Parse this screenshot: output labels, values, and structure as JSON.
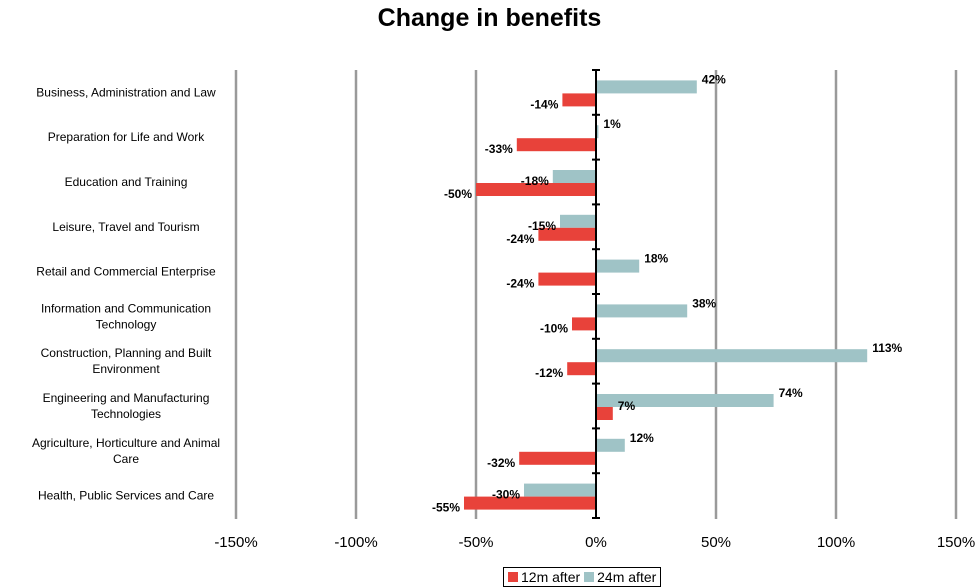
{
  "chart_data": {
    "type": "bar",
    "orientation": "horizontal",
    "title": "Change in benefits",
    "categories": [
      "Business, Administration and Law",
      "Preparation for Life and Work",
      "Education and Training",
      "Leisure, Travel and Tourism",
      "Retail and Commercial Enterprise",
      "Information and Communication Technology",
      "Construction, Planning and Built Environment",
      "Engineering and Manufacturing Technologies",
      "Agriculture, Horticulture and Animal Care",
      "Health, Public Services and Care"
    ],
    "series": [
      {
        "name": "12m after",
        "color": "#e8423a",
        "values": [
          -14,
          -33,
          -50,
          -24,
          -24,
          -10,
          -12,
          7,
          -32,
          -55
        ],
        "labels": [
          "-14%",
          "-33%",
          "-50%",
          "-24%",
          "-24%",
          "-10%",
          "-12%",
          "7%",
          "-32%",
          "-55%"
        ]
      },
      {
        "name": "24m after",
        "color": "#9fc3c6",
        "values": [
          42,
          1,
          -18,
          -15,
          18,
          38,
          113,
          74,
          12,
          -30
        ],
        "labels": [
          "42%",
          "1%",
          "-18%",
          "-15%",
          "18%",
          "38%",
          "113%",
          "74%",
          "12%",
          "-30%"
        ]
      }
    ],
    "xlim": [
      -150,
      150
    ],
    "xticks": [
      -150,
      -100,
      -50,
      0,
      50,
      100,
      150
    ],
    "xtick_labels": [
      "-150%",
      "-100%",
      "-50%",
      "0%",
      "50%",
      "100%",
      "150%"
    ],
    "grid": "vertical",
    "legend_position": "bottom-center",
    "xlabel": "",
    "ylabel": ""
  }
}
